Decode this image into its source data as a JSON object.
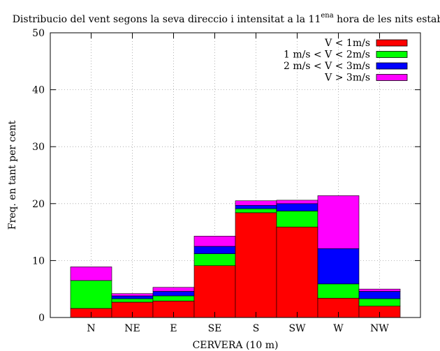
{
  "chart_data": {
    "type": "bar",
    "stacked": true,
    "title": {
      "main": "Distribucio del vent segons la seva direccio i intensitat a la 11",
      "superscript": "ena",
      "rest": " hora de les nits estables"
    },
    "xlabel": "CERVERA (10 m)",
    "ylabel": "Freq. en tant per cent",
    "ylim": [
      0,
      50
    ],
    "yticks": [
      "0",
      "10",
      "20",
      "30",
      "40",
      "50"
    ],
    "grid": true,
    "legend_position": "top-right",
    "categories": [
      "N",
      "NE",
      "E",
      "SE",
      "S",
      "SW",
      "W",
      "NW"
    ],
    "series": [
      {
        "name": "V < 1m/s",
        "color": "#ff0000",
        "values": [
          1.6,
          2.7,
          2.9,
          9.1,
          18.4,
          15.9,
          3.4,
          2.0
        ]
      },
      {
        "name": "1 m/s < V < 2m/s",
        "color": "#00ff00",
        "values": [
          4.9,
          0.6,
          0.9,
          2.1,
          0.7,
          2.8,
          2.5,
          1.3
        ]
      },
      {
        "name": "2 m/s < V < 3m/s",
        "color": "#0000ff",
        "values": [
          0.0,
          0.5,
          0.8,
          1.3,
          0.6,
          1.3,
          6.2,
          1.3
        ]
      },
      {
        "name": "V > 3m/s",
        "color": "#ff00ff",
        "values": [
          2.4,
          0.4,
          0.7,
          1.8,
          0.8,
          0.6,
          9.3,
          0.4
        ]
      }
    ]
  }
}
